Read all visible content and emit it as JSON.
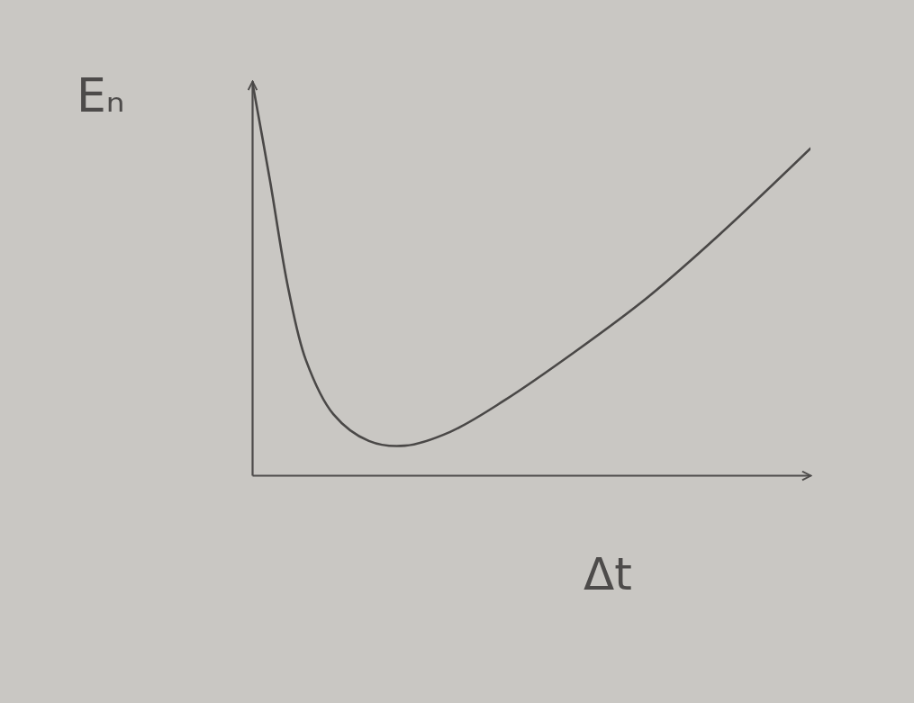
{
  "chart_data": {
    "type": "line",
    "x_label": "Δt",
    "y_label": "Eₙ",
    "x": [
      0,
      0.35,
      0.71,
      1.06,
      1.6,
      2.3,
      3.01,
      3.9,
      4.96,
      6.38,
      7.8,
      9.22,
      11
    ],
    "values": [
      10,
      7.49,
      4.75,
      2.92,
      1.55,
      0.87,
      0.75,
      1.1,
      1.89,
      3.15,
      4.52,
      6.12,
      8.29
    ],
    "color": "#4a4847",
    "line_style": "solid",
    "xlim": [
      0,
      11
    ],
    "ylim": [
      0,
      10
    ],
    "tick_labels": false,
    "grid": false
  }
}
